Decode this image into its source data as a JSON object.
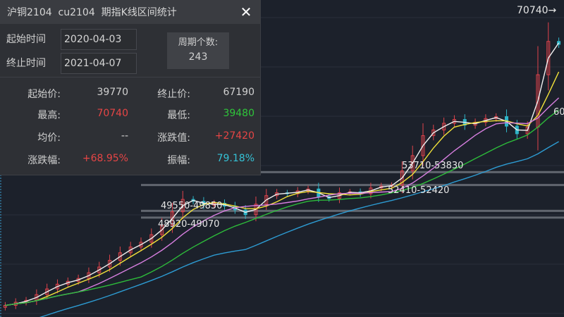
{
  "dialog": {
    "title": "沪铜2104  cu2104  期指K线区间统计",
    "close_label": "✕",
    "start_time_label": "起始时间",
    "start_time_value": "2020-04-03",
    "end_time_label": "终止时间",
    "end_time_value": "2021-04-07",
    "period_count_label": "周期个数:",
    "period_count_value": "243",
    "stats": {
      "start_price_label": "起始价:",
      "start_price": "39770",
      "end_price_label": "终止价:",
      "end_price": "67190",
      "high_label": "最高:",
      "high": "70740",
      "low_label": "最低:",
      "low": "39480",
      "avg_label": "均价:",
      "avg": "--",
      "change_label": "涨跌值:",
      "change": "+27420",
      "change_pct_label": "涨跌幅:",
      "change_pct": "+68.95%",
      "amplitude_label": "振幅:",
      "amplitude": "79.18%"
    }
  },
  "colors": {
    "up": "#e0434b",
    "down": "#2fb5c8",
    "high": "#e64545",
    "low": "#2fc53a",
    "amp": "#35c2d6",
    "ma": [
      "#f0f0f0",
      "#f2e23a",
      "#d77fe0",
      "#2dbb3a",
      "#2d9bd2"
    ]
  },
  "chart_data": {
    "type": "candlestick",
    "ylim": [
      38550,
      71850
    ],
    "closes": [
      39770,
      40100,
      40300,
      40900,
      41500,
      42000,
      42300,
      42600,
      43200,
      43800,
      44500,
      45300,
      45900,
      46400,
      47200,
      48200,
      49600,
      50900,
      50700,
      50300,
      50500,
      50200,
      49800,
      49300,
      50400,
      51300,
      51600,
      51500,
      51800,
      52000,
      51200,
      51000,
      51600,
      51700,
      51500,
      52100,
      52300,
      52400,
      53900,
      55500,
      57600,
      58200,
      58900,
      59300,
      58700,
      59000,
      59400,
      59600,
      58600,
      57800,
      58500,
      64000,
      67500,
      67190
    ],
    "high_marker": "70740→",
    "zones": [
      {
        "label": "53710-53830",
        "lo": 53710,
        "hi": 53830
      },
      {
        "label": "52410-52420",
        "lo": 52410,
        "hi": 52420
      },
      {
        "label": "49550-49850",
        "lo": 49550,
        "hi": 49850
      },
      {
        "label": "48920-49070",
        "lo": 48920,
        "hi": 49070
      }
    ],
    "partial_label": "60"
  }
}
